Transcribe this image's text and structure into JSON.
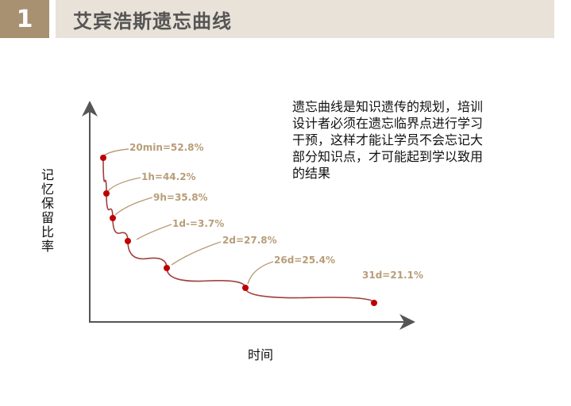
{
  "header": {
    "number": "1",
    "title": "艾宾浩斯遗忘曲线"
  },
  "description": "遗忘曲线是知识遗传的规划，培训设计者必须在遗忘临界点进行学习干预，这样才能让学员不会忘记大部分知识点，才可能起到学以致用的结果",
  "colors": {
    "accent": "#a89171",
    "title_band": "#e9e2d8",
    "curve": "#a04040",
    "point": "#c00000",
    "annotation": "#b89d78",
    "axis": "#555555"
  },
  "chart_data": {
    "type": "line",
    "title": "",
    "xlabel": "时间",
    "ylabel": "记忆保留比率",
    "grid": false,
    "points": [
      {
        "label": "20min=52.8%"
      },
      {
        "label": "1h=44.2%"
      },
      {
        "label": "9h=35.8%"
      },
      {
        "label": "1d-=3.7%"
      },
      {
        "label": "2d=27.8%"
      },
      {
        "label": "26d=25.4%"
      },
      {
        "label": "31d=21.1%"
      }
    ]
  }
}
